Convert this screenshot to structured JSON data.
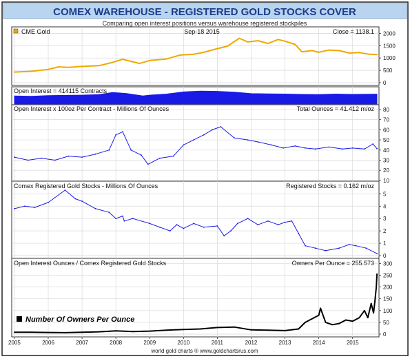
{
  "header": {
    "title": "COMEX WAREHOUSE - REGISTERED GOLD STOCKS COVER",
    "subtitle": "Comparing open interest positions versus warehouse registered stockpiles"
  },
  "footer": {
    "credit": "world gold charts ® www.goldchartsrus.com"
  },
  "colors": {
    "title_bg": "#b8d4ef",
    "title_text": "#1b3d8a",
    "gold_line": "#f0a800",
    "blue_line": "#1a1ae6",
    "black_line": "#000000",
    "grid": "#d9d9d9"
  },
  "chart_data": [
    {
      "type": "line",
      "panel": "gold",
      "label_left": "CME Gold",
      "label_center": "Sep-18  2015",
      "label_right": "Close = 1138.1",
      "x": [
        2005.0,
        2005.5,
        2006.0,
        2006.3,
        2006.6,
        2007.0,
        2007.5,
        2007.9,
        2008.2,
        2008.7,
        2009.0,
        2009.5,
        2009.9,
        2010.3,
        2010.6,
        2011.0,
        2011.3,
        2011.65,
        2011.9,
        2012.2,
        2012.5,
        2012.8,
        2013.0,
        2013.3,
        2013.5,
        2013.8,
        2014.0,
        2014.3,
        2014.6,
        2014.9,
        2015.2,
        2015.5,
        2015.72
      ],
      "y": [
        430,
        460,
        540,
        640,
        620,
        660,
        690,
        820,
        950,
        780,
        900,
        960,
        1120,
        1150,
        1230,
        1380,
        1480,
        1800,
        1650,
        1700,
        1590,
        1750,
        1680,
        1550,
        1250,
        1300,
        1230,
        1320,
        1300,
        1200,
        1220,
        1150,
        1138
      ],
      "yticks": [
        0,
        500,
        1000,
        1500,
        2000
      ],
      "ylim": [
        0,
        2150
      ],
      "legend": "marker-top-left"
    },
    {
      "type": "area",
      "panel": "open_interest",
      "label_left": "Open Interest = 414115 Contracts",
      "x": [
        2005.0,
        2005.5,
        2006.0,
        2006.5,
        2007.0,
        2007.5,
        2007.9,
        2008.3,
        2008.8,
        2009.0,
        2009.5,
        2010.0,
        2010.5,
        2011.0,
        2011.5,
        2012.0,
        2012.5,
        2013.0,
        2013.5,
        2014.0,
        2014.5,
        2015.0,
        2015.72
      ],
      "y": [
        320,
        300,
        340,
        350,
        360,
        390,
        500,
        450,
        320,
        360,
        420,
        530,
        570,
        560,
        520,
        440,
        430,
        420,
        400,
        390,
        420,
        400,
        414
      ],
      "ylim": [
        0,
        650
      ]
    },
    {
      "type": "line",
      "panel": "total_ounces",
      "label_left": "Open Interest x 100oz Per Contract  -  Millions Of Ounces",
      "label_right": "Total Ounces = 41.412 m/oz",
      "x": [
        2005.0,
        2005.4,
        2005.8,
        2006.2,
        2006.6,
        2007.0,
        2007.4,
        2007.8,
        2008.0,
        2008.2,
        2008.45,
        2008.75,
        2008.95,
        2009.3,
        2009.7,
        2010.0,
        2010.3,
        2010.6,
        2010.85,
        2011.1,
        2011.5,
        2011.9,
        2012.2,
        2012.6,
        2012.95,
        2013.3,
        2013.6,
        2013.9,
        2014.3,
        2014.7,
        2015.0,
        2015.35,
        2015.6,
        2015.72
      ],
      "y": [
        33,
        30,
        32,
        30,
        34,
        33,
        36,
        40,
        55,
        58,
        40,
        35,
        26,
        32,
        34,
        45,
        50,
        55,
        60,
        63,
        52,
        50,
        48,
        45,
        42,
        44,
        42,
        41,
        43,
        41,
        42,
        41,
        46,
        41.4
      ],
      "yticks": [
        10,
        20,
        30,
        40,
        50,
        60,
        70,
        80
      ],
      "ylim": [
        12,
        82
      ]
    },
    {
      "type": "line",
      "panel": "registered",
      "label_left": "Comex Registered Gold Stocks  -  Millions Of Ounces",
      "label_right": "Registered Stocks = 0.162 m/oz",
      "x": [
        2005.0,
        2005.3,
        2005.6,
        2006.0,
        2006.5,
        2006.8,
        2007.0,
        2007.4,
        2007.8,
        2008.0,
        2008.2,
        2008.25,
        2008.5,
        2009.0,
        2009.3,
        2009.6,
        2009.8,
        2010.0,
        2010.3,
        2010.6,
        2011.0,
        2011.2,
        2011.4,
        2011.6,
        2011.9,
        2012.2,
        2012.5,
        2012.8,
        2013.0,
        2013.2,
        2013.4,
        2013.6,
        2013.9,
        2014.2,
        2014.6,
        2014.9,
        2015.1,
        2015.4,
        2015.72
      ],
      "y": [
        3.8,
        4.0,
        3.9,
        4.3,
        5.3,
        4.6,
        4.4,
        3.8,
        3.5,
        3.0,
        3.2,
        2.8,
        3.0,
        2.6,
        2.3,
        2.0,
        2.5,
        2.2,
        2.6,
        2.3,
        2.4,
        1.6,
        2.0,
        2.6,
        3.0,
        2.5,
        2.8,
        2.5,
        2.7,
        2.8,
        1.8,
        0.8,
        0.6,
        0.4,
        0.6,
        0.9,
        0.8,
        0.6,
        0.16
      ],
      "yticks": [
        0,
        1,
        2,
        3,
        4,
        5
      ],
      "ylim": [
        0,
        5.8
      ]
    },
    {
      "type": "line",
      "panel": "owners",
      "label_left": "Open Interest Ounces / Comex Registered Gold Stocks",
      "label_right": "Owners Per Ounce = 255.573",
      "legend_label": "Number Of Owners Per Ounce",
      "legend": "bottom-left",
      "x": [
        2005.0,
        2005.5,
        2006.0,
        2006.5,
        2007.0,
        2007.5,
        2008.0,
        2008.5,
        2009.0,
        2009.5,
        2010.0,
        2010.5,
        2011.0,
        2011.5,
        2012.0,
        2012.5,
        2013.0,
        2013.4,
        2013.6,
        2013.8,
        2014.0,
        2014.05,
        2014.2,
        2014.4,
        2014.6,
        2014.8,
        2015.0,
        2015.2,
        2015.35,
        2015.45,
        2015.55,
        2015.62,
        2015.66,
        2015.7,
        2015.72
      ],
      "y": [
        8,
        8,
        7,
        6,
        8,
        10,
        14,
        11,
        13,
        17,
        20,
        22,
        28,
        30,
        18,
        17,
        15,
        22,
        50,
        65,
        80,
        110,
        50,
        40,
        45,
        60,
        55,
        70,
        100,
        70,
        130,
        90,
        140,
        200,
        255.6
      ],
      "yticks": [
        0,
        50,
        100,
        150,
        200,
        250,
        300
      ],
      "ylim": [
        0,
        310
      ]
    }
  ],
  "x_axis": {
    "ticks": [
      "2005",
      "2006",
      "2007",
      "2008",
      "2009",
      "2010",
      "2011",
      "2012",
      "2013",
      "2014",
      "2015"
    ],
    "range": [
      2004.92,
      2015.78
    ]
  }
}
